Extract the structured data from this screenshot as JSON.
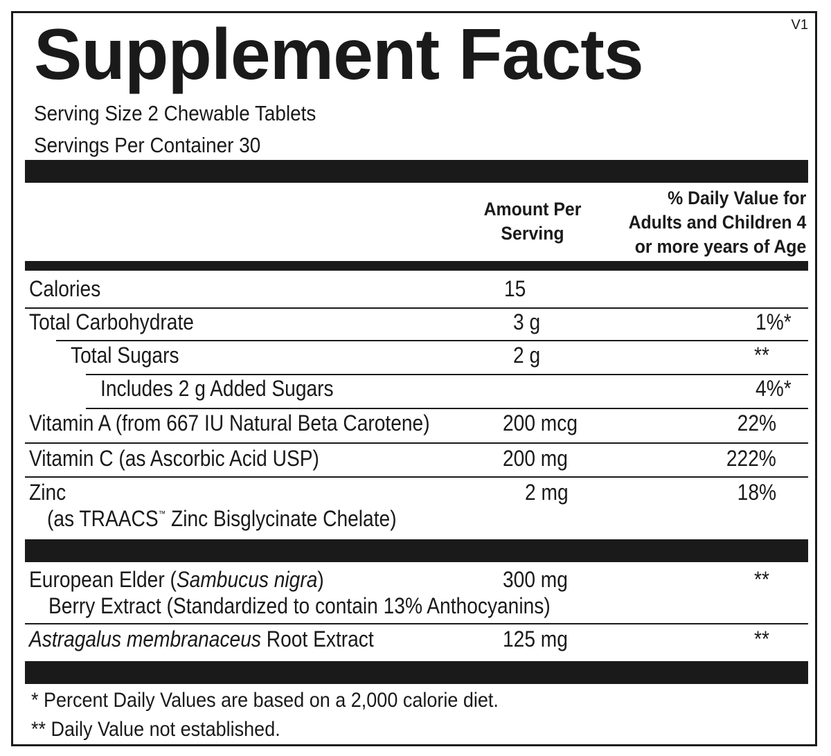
{
  "label": {
    "version": "V1",
    "title": "Supplement Facts",
    "serving_size": "Serving Size 2 Chewable Tablets",
    "servings_per_container": "Servings Per Container 30"
  },
  "header": {
    "amount_line1": "Amount Per",
    "amount_line2": "Serving",
    "dv_line1": "% Daily Value for",
    "dv_line2": "Adults and Children 4",
    "dv_line3": "or more years of Age"
  },
  "rows": [
    {
      "name": "Calories",
      "amount": "15",
      "dv": ""
    },
    {
      "name": "Total Carbohydrate",
      "amount": "3 g",
      "dv": "1%*"
    },
    {
      "name": "Total Sugars",
      "amount": "2 g",
      "dv": "**"
    },
    {
      "name": "Includes 2 g Added Sugars",
      "amount": "",
      "dv": "4%*"
    },
    {
      "name": "Vitamin A (from 667 IU Natural Beta Carotene)",
      "amount": "200 mcg",
      "dv": "22%"
    },
    {
      "name": "Vitamin C (as Ascorbic Acid USP)",
      "amount": "200 mg",
      "dv": "222%"
    },
    {
      "name": "Zinc",
      "sub_a": "(as TRAACS",
      "tm": "™",
      "sub_b": " Zinc Bisglycinate Chelate)",
      "amount": "2 mg",
      "dv": "18%"
    }
  ],
  "botanicals": [
    {
      "name_a": "European Elder (",
      "name_italic": "Sambucus nigra",
      "name_b": ")",
      "sub": "Berry Extract (Standardized to contain 13% Anthocyanins)",
      "amount": "300 mg",
      "dv": "**"
    },
    {
      "name_italic": "Astragalus membranaceus",
      "name_b": " Root Extract",
      "amount": "125 mg",
      "dv": "**"
    }
  ],
  "footnotes": [
    "* Percent Daily Values are based on a 2,000 calorie diet.",
    "** Daily Value not established."
  ]
}
